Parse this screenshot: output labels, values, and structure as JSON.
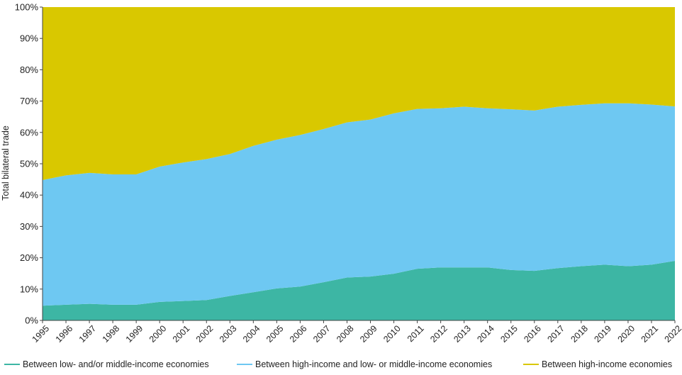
{
  "chart_data": {
    "type": "area",
    "stacked": "percent",
    "ylabel": "Total bilateral trade",
    "xlabel": "",
    "ylim": [
      0,
      100
    ],
    "yticks": [
      "0%",
      "10%",
      "20%",
      "30%",
      "40%",
      "50%",
      "60%",
      "70%",
      "80%",
      "90%",
      "100%"
    ],
    "x": [
      "1995",
      "1996",
      "1997",
      "1998",
      "1999",
      "2000",
      "2001",
      "2002",
      "2003",
      "2004",
      "2005",
      "2006",
      "2007",
      "2008",
      "2009",
      "2010",
      "2011",
      "2012",
      "2013",
      "2014",
      "2015",
      "2016",
      "2017",
      "2018",
      "2019",
      "2020",
      "2021",
      "2022"
    ],
    "series": [
      {
        "name": "Between low- and/or middle-income economies",
        "color": "#3db6a4",
        "values": [
          4.7,
          5.0,
          5.3,
          5.0,
          5.0,
          5.9,
          6.2,
          6.5,
          7.8,
          9.0,
          10.2,
          10.8,
          12.2,
          13.7,
          14.0,
          14.9,
          16.5,
          16.9,
          16.9,
          16.9,
          16.1,
          15.8,
          16.7,
          17.3,
          17.8,
          17.3,
          17.8,
          19.0
        ]
      },
      {
        "name": "Between high-income and low- or middle-income economies",
        "color": "#6ec8f2",
        "values": [
          40.1,
          41.3,
          41.8,
          41.6,
          41.6,
          43.2,
          44.2,
          45.0,
          45.3,
          46.7,
          47.5,
          48.4,
          48.9,
          49.5,
          50.1,
          51.2,
          51.0,
          50.8,
          51.3,
          50.8,
          51.3,
          51.2,
          51.5,
          51.5,
          51.5,
          52.0,
          51.1,
          49.3
        ]
      },
      {
        "name": "Between high-income economies",
        "color": "#d9c800",
        "values": [
          55.2,
          53.7,
          52.9,
          53.4,
          53.4,
          50.9,
          49.6,
          48.5,
          46.9,
          44.3,
          42.3,
          40.8,
          38.9,
          36.8,
          35.9,
          33.9,
          32.5,
          32.3,
          31.8,
          32.3,
          32.6,
          33.0,
          31.8,
          31.2,
          30.7,
          30.7,
          31.1,
          31.7
        ]
      }
    ]
  }
}
